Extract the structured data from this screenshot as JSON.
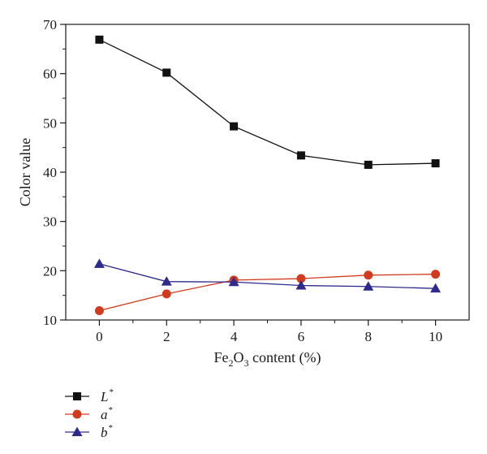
{
  "chart_data": {
    "type": "line",
    "xlabel": {
      "prefix": "Fe",
      "sub1": "2",
      "mid": "O",
      "sub2": "3",
      "suffix": " content (%)"
    },
    "ylabel": "Color value",
    "xlim": [
      -1,
      11
    ],
    "ylim": [
      10,
      70
    ],
    "x_ticks": [
      0,
      2,
      4,
      6,
      8,
      10
    ],
    "y_ticks": [
      10,
      20,
      30,
      40,
      50,
      60,
      70
    ],
    "x_minor_ticks": [
      1,
      3,
      5,
      7,
      9
    ],
    "y_minor_ticks": [
      15,
      25,
      35,
      45,
      55,
      65
    ],
    "x": [
      0,
      2,
      4,
      6,
      8,
      10
    ],
    "series": [
      {
        "name": "L",
        "sup": "*",
        "marker": "square",
        "color": "#111111",
        "values": [
          66.9,
          60.2,
          49.3,
          43.4,
          41.5,
          41.8
        ]
      },
      {
        "name": "a",
        "sup": "*",
        "marker": "circle",
        "color": "#d13a1c",
        "values": [
          11.9,
          15.3,
          18.1,
          18.4,
          19.1,
          19.3
        ]
      },
      {
        "name": "b",
        "sup": "*",
        "marker": "triangle",
        "color": "#2d2a8c",
        "values": [
          21.4,
          17.8,
          17.7,
          17.0,
          16.8,
          16.4
        ]
      }
    ],
    "legend_position": "bottom-left"
  }
}
